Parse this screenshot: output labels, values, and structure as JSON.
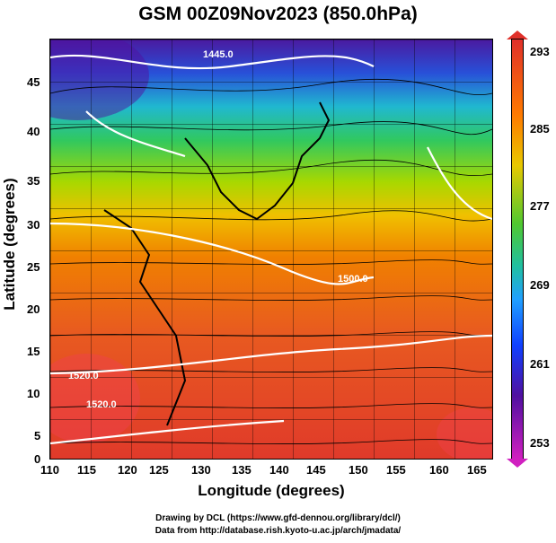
{
  "title": "GSM 00Z09Nov2023 (850.0hPa)",
  "axes": {
    "xlabel": "Longitude (degrees)",
    "ylabel": "Latitude (degrees)",
    "xticks": [
      "110",
      "115",
      "120",
      "125",
      "130",
      "135",
      "140",
      "145",
      "150",
      "155",
      "160",
      "165"
    ],
    "yticks": [
      "45",
      "40",
      "35",
      "30",
      "25",
      "20",
      "15",
      "10",
      "5",
      "0"
    ]
  },
  "colorbar": {
    "labels": [
      "293",
      "285",
      "277",
      "269",
      "261",
      "253"
    ]
  },
  "contour_labels": [
    "1445.0",
    "1500.0",
    "1520.0",
    "1520.0"
  ],
  "credit": {
    "line1": "Drawing by DCL (https://www.gfd-dennou.org/library/dcl/)",
    "line2": "Data from http://database.rish.kyoto-u.ac.jp/arch/jmadata/"
  },
  "colors": {
    "warm": "#e03a2a",
    "cold": "#3a0a8a",
    "streamline": "#000000",
    "contour": "#ffffff"
  }
}
